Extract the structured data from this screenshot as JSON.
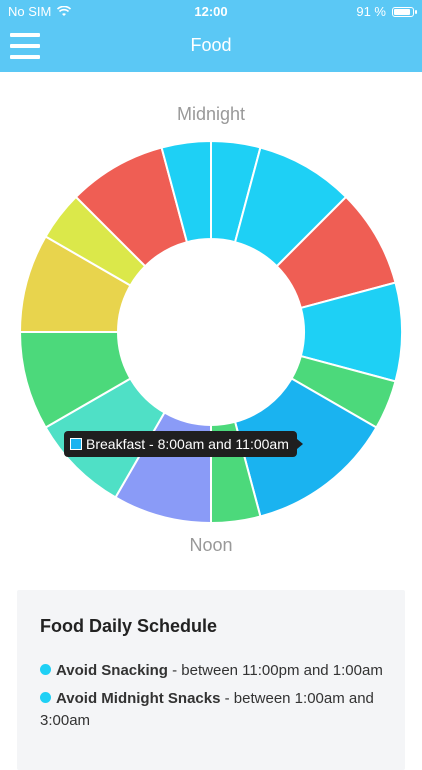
{
  "status_bar": {
    "carrier": "No SIM",
    "time": "12:00",
    "battery": "91 %",
    "battery_level": 0.91
  },
  "nav": {
    "title": "Food",
    "menu_icon": "hamburger-menu-icon"
  },
  "chart_data": {
    "type": "pie",
    "top_label": "Midnight",
    "bottom_label": "Noon",
    "slices": [
      {
        "color": "#1ed0f5",
        "value": 1
      },
      {
        "color": "#1ed0f5",
        "value": 2
      },
      {
        "color": "#ef5e54",
        "value": 2
      },
      {
        "color": "#1ed0f5",
        "value": 2
      },
      {
        "color": "#4cd97b",
        "value": 1
      },
      {
        "color": "#1ab3f0",
        "value": 3
      },
      {
        "color": "#4cd97b",
        "value": 1
      },
      {
        "color": "#8a9bf7",
        "value": 2
      },
      {
        "color": "#4fe0c6",
        "value": 2
      },
      {
        "color": "#4cd97b",
        "value": 2
      },
      {
        "color": "#e8d44d",
        "value": 2
      },
      {
        "color": "#dbe84a",
        "value": 1
      },
      {
        "color": "#ef5e54",
        "value": 2
      },
      {
        "color": "#1ed0f5",
        "value": 1
      }
    ],
    "tooltip": {
      "text": "Breakfast - 8:00am and 11:00am",
      "color": "#1ab3f0"
    }
  },
  "schedule": {
    "title": "Food Daily Schedule",
    "items": [
      {
        "name": "Avoid Snacking",
        "detail": " - between 11:00pm and 1:00am"
      },
      {
        "name": "Avoid Midnight Snacks",
        "detail": " - between 1:00am and 3:00am"
      }
    ]
  }
}
